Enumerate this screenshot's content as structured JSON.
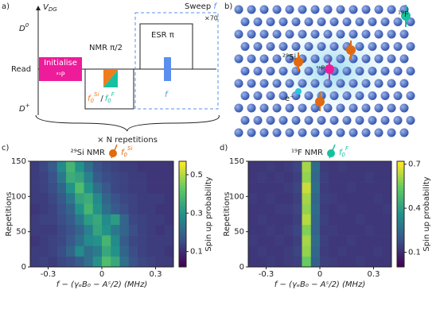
{
  "panel_a": {
    "label": "a)",
    "v": "V",
    "v_sub": "DG",
    "d0": "D",
    "d0_sup": "0",
    "read": "Read",
    "dplus": "D",
    "dplus_sup": "+",
    "init": "Initialise",
    "init_sub": "³¹P",
    "nmr": "NMR π/2",
    "f_si": "f",
    "f_si_sub": "0",
    "f_si_sup": "Si",
    "slash": "/",
    "f_f": "f",
    "f_f_sub": "0",
    "f_f_sup": "F",
    "esr": "ESR π",
    "esr_f": "f",
    "sweep": "Sweep",
    "sweep_f": "f",
    "times70": "×70",
    "reps": "× N repetitions"
  },
  "panel_b": {
    "label": "b)",
    "f19": "¹⁹F",
    "si29": "²⁹Si",
    "p31": "³¹P",
    "e": "e⁻"
  },
  "chart_data": [
    {
      "type": "heatmap",
      "label": "c)",
      "title": "²⁹Si NMR",
      "marker_f": "f",
      "marker_sub": "0",
      "marker_sup": "Si",
      "xlabel": "f − (γₑB₀ − Aˢ/2) (MHz)",
      "ylabel": "Repetitions",
      "colorbar_label": "Spin up probability",
      "xlim": [
        -0.4,
        0.4
      ],
      "ylim": [
        0,
        150
      ],
      "xticks": [
        -0.3,
        0,
        0.3
      ],
      "yticks": [
        0,
        50,
        100,
        150
      ],
      "zlim": [
        0.02,
        0.57
      ],
      "zticks": [
        0.1,
        0.3,
        0.5
      ],
      "z": [
        [
          0.12,
          0.13,
          0.12,
          0.14,
          0.15,
          0.18,
          0.22,
          0.3,
          0.4,
          0.35,
          0.22,
          0.16,
          0.14,
          0.13,
          0.12,
          0.12
        ],
        [
          0.12,
          0.12,
          0.13,
          0.15,
          0.2,
          0.28,
          0.22,
          0.25,
          0.35,
          0.3,
          0.2,
          0.15,
          0.13,
          0.12,
          0.12,
          0.11
        ],
        [
          0.11,
          0.12,
          0.13,
          0.14,
          0.17,
          0.22,
          0.28,
          0.3,
          0.38,
          0.28,
          0.18,
          0.14,
          0.13,
          0.12,
          0.12,
          0.12
        ],
        [
          0.12,
          0.12,
          0.12,
          0.14,
          0.16,
          0.2,
          0.26,
          0.34,
          0.3,
          0.24,
          0.2,
          0.15,
          0.13,
          0.12,
          0.11,
          0.12
        ],
        [
          0.12,
          0.13,
          0.13,
          0.15,
          0.18,
          0.24,
          0.32,
          0.35,
          0.28,
          0.32,
          0.2,
          0.14,
          0.13,
          0.12,
          0.12,
          0.11
        ],
        [
          0.11,
          0.12,
          0.13,
          0.16,
          0.2,
          0.3,
          0.38,
          0.3,
          0.22,
          0.18,
          0.15,
          0.13,
          0.12,
          0.12,
          0.11,
          0.11
        ],
        [
          0.12,
          0.12,
          0.14,
          0.17,
          0.24,
          0.34,
          0.36,
          0.28,
          0.2,
          0.16,
          0.14,
          0.13,
          0.12,
          0.12,
          0.12,
          0.11
        ],
        [
          0.12,
          0.13,
          0.15,
          0.2,
          0.3,
          0.4,
          0.3,
          0.22,
          0.17,
          0.14,
          0.13,
          0.12,
          0.12,
          0.11,
          0.11,
          0.11
        ],
        [
          0.12,
          0.13,
          0.16,
          0.24,
          0.36,
          0.34,
          0.26,
          0.18,
          0.15,
          0.14,
          0.13,
          0.12,
          0.12,
          0.11,
          0.11,
          0.11
        ],
        [
          0.12,
          0.14,
          0.18,
          0.28,
          0.38,
          0.3,
          0.22,
          0.16,
          0.14,
          0.13,
          0.12,
          0.12,
          0.11,
          0.11,
          0.11,
          0.11
        ]
      ]
    },
    {
      "type": "heatmap",
      "label": "d)",
      "title": "¹⁹F NMR",
      "marker_f": "f",
      "marker_sub": "0",
      "marker_sup": "F",
      "xlabel": "f − (γₑB₀ − Aˢ/2) (MHz)",
      "ylabel": "Repetitions",
      "colorbar_label": "Spin up probability",
      "xlim": [
        -0.4,
        0.4
      ],
      "ylim": [
        0,
        150
      ],
      "xticks": [
        -0.3,
        0,
        0.3
      ],
      "yticks": [
        0,
        50,
        100,
        150
      ],
      "zlim": [
        0,
        0.72
      ],
      "zticks": [
        0.1,
        0.4,
        0.7
      ],
      "z": [
        [
          0.12,
          0.12,
          0.13,
          0.12,
          0.13,
          0.14,
          0.55,
          0.22,
          0.14,
          0.13,
          0.12,
          0.12,
          0.13,
          0.12,
          0.12,
          0.12
        ],
        [
          0.12,
          0.13,
          0.12,
          0.12,
          0.13,
          0.15,
          0.6,
          0.24,
          0.13,
          0.12,
          0.13,
          0.12,
          0.12,
          0.12,
          0.13,
          0.12
        ],
        [
          0.13,
          0.12,
          0.12,
          0.13,
          0.12,
          0.14,
          0.62,
          0.25,
          0.14,
          0.12,
          0.12,
          0.13,
          0.12,
          0.12,
          0.12,
          0.12
        ],
        [
          0.12,
          0.12,
          0.13,
          0.12,
          0.13,
          0.15,
          0.58,
          0.23,
          0.13,
          0.13,
          0.12,
          0.12,
          0.12,
          0.13,
          0.12,
          0.12
        ],
        [
          0.12,
          0.13,
          0.12,
          0.12,
          0.12,
          0.14,
          0.64,
          0.24,
          0.14,
          0.12,
          0.12,
          0.12,
          0.13,
          0.12,
          0.12,
          0.12
        ],
        [
          0.12,
          0.12,
          0.12,
          0.13,
          0.13,
          0.15,
          0.6,
          0.25,
          0.13,
          0.12,
          0.13,
          0.12,
          0.12,
          0.12,
          0.12,
          0.13
        ],
        [
          0.13,
          0.12,
          0.13,
          0.12,
          0.12,
          0.14,
          0.62,
          0.24,
          0.14,
          0.13,
          0.12,
          0.12,
          0.12,
          0.12,
          0.13,
          0.12
        ],
        [
          0.12,
          0.12,
          0.12,
          0.12,
          0.13,
          0.15,
          0.66,
          0.26,
          0.13,
          0.12,
          0.12,
          0.13,
          0.12,
          0.12,
          0.12,
          0.12
        ],
        [
          0.12,
          0.13,
          0.12,
          0.13,
          0.12,
          0.14,
          0.6,
          0.24,
          0.14,
          0.12,
          0.12,
          0.12,
          0.12,
          0.13,
          0.12,
          0.12
        ],
        [
          0.12,
          0.12,
          0.13,
          0.12,
          0.13,
          0.15,
          0.62,
          0.25,
          0.13,
          0.12,
          0.13,
          0.12,
          0.12,
          0.12,
          0.12,
          0.12
        ]
      ]
    }
  ]
}
